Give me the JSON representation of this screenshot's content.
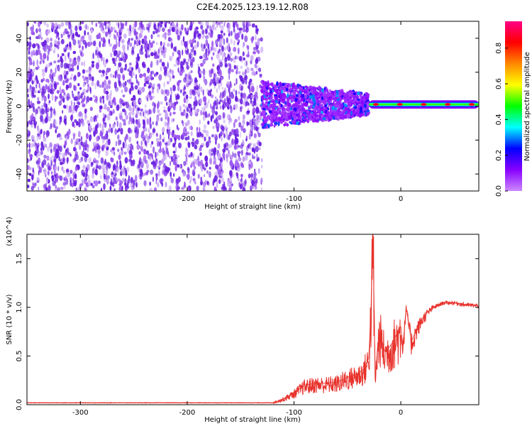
{
  "title": "C2E4.2025.123.19.12.R08",
  "colors": {
    "spectrogram_band": "#6a1fe0",
    "spectrogram_light": "#c9a8f5",
    "snr_line": "#e8322c"
  },
  "chart_data": [
    {
      "type": "heatmap",
      "name": "spectrogram",
      "xlabel": "Height of straight line (km)",
      "ylabel": "Frequency (Hz)",
      "xlim": [
        -350,
        73
      ],
      "ylim": [
        -50,
        50
      ],
      "x_ticks": [
        -300,
        -200,
        -100,
        0
      ],
      "y_ticks": [
        -40,
        -20,
        0,
        20,
        40
      ],
      "colorbar": {
        "label": "Normalized spectral amplitude",
        "range": [
          0,
          0.95
        ],
        "ticks": [
          "0.0",
          "0.2",
          "0.4",
          "0.6",
          "0.8"
        ],
        "colormap": [
          "#cc88ff",
          "#8800ff",
          "#0000ff",
          "#00ffff",
          "#00ff00",
          "#ffff00",
          "#ff8800",
          "#ff0000",
          "#ff0088"
        ]
      },
      "regions": [
        {
          "x_range": [
            -350,
            -130
          ],
          "freq_range": [
            -50,
            50
          ],
          "amplitude": 0.05,
          "description": "broadband noise"
        },
        {
          "x_range": [
            -130,
            -30
          ],
          "freq_range": [
            -13,
            15
          ],
          "amplitude": 0.2
        },
        {
          "x_range": [
            -30,
            73
          ],
          "freq_range": [
            -3,
            5
          ],
          "amplitude": 0.6
        }
      ]
    },
    {
      "type": "line",
      "name": "snr",
      "xlabel": "Height of straight line (km)",
      "ylabel": "SNR (10 * v/v)",
      "y_multiplier": "(x10^4)",
      "xlim": [
        -350,
        73
      ],
      "ylim": [
        0,
        1.75
      ],
      "x_ticks": [
        -300,
        -200,
        -100,
        0
      ],
      "y_ticks": [
        "0.0",
        "0.5",
        "1.0",
        "1.5"
      ],
      "series": [
        {
          "x": [
            -350,
            -300,
            -250,
            -200,
            -150,
            -120,
            -110,
            -100,
            -90,
            -80,
            -70,
            -60,
            -50,
            -40,
            -35,
            -30,
            -28,
            -26,
            -24,
            -22,
            -20,
            -15,
            -10,
            -5,
            0,
            2,
            5,
            10,
            15,
            20,
            25,
            30,
            40,
            50,
            60,
            73
          ],
          "y": [
            0.02,
            0.02,
            0.02,
            0.02,
            0.02,
            0.02,
            0.06,
            0.12,
            0.2,
            0.22,
            0.22,
            0.23,
            0.28,
            0.32,
            0.36,
            0.48,
            0.95,
            1.75,
            0.25,
            0.55,
            0.75,
            0.55,
            0.6,
            0.7,
            0.8,
            0.6,
            1.0,
            0.65,
            0.78,
            0.88,
            0.95,
            1.0,
            1.05,
            1.05,
            1.03,
            1.02
          ]
        }
      ]
    }
  ]
}
